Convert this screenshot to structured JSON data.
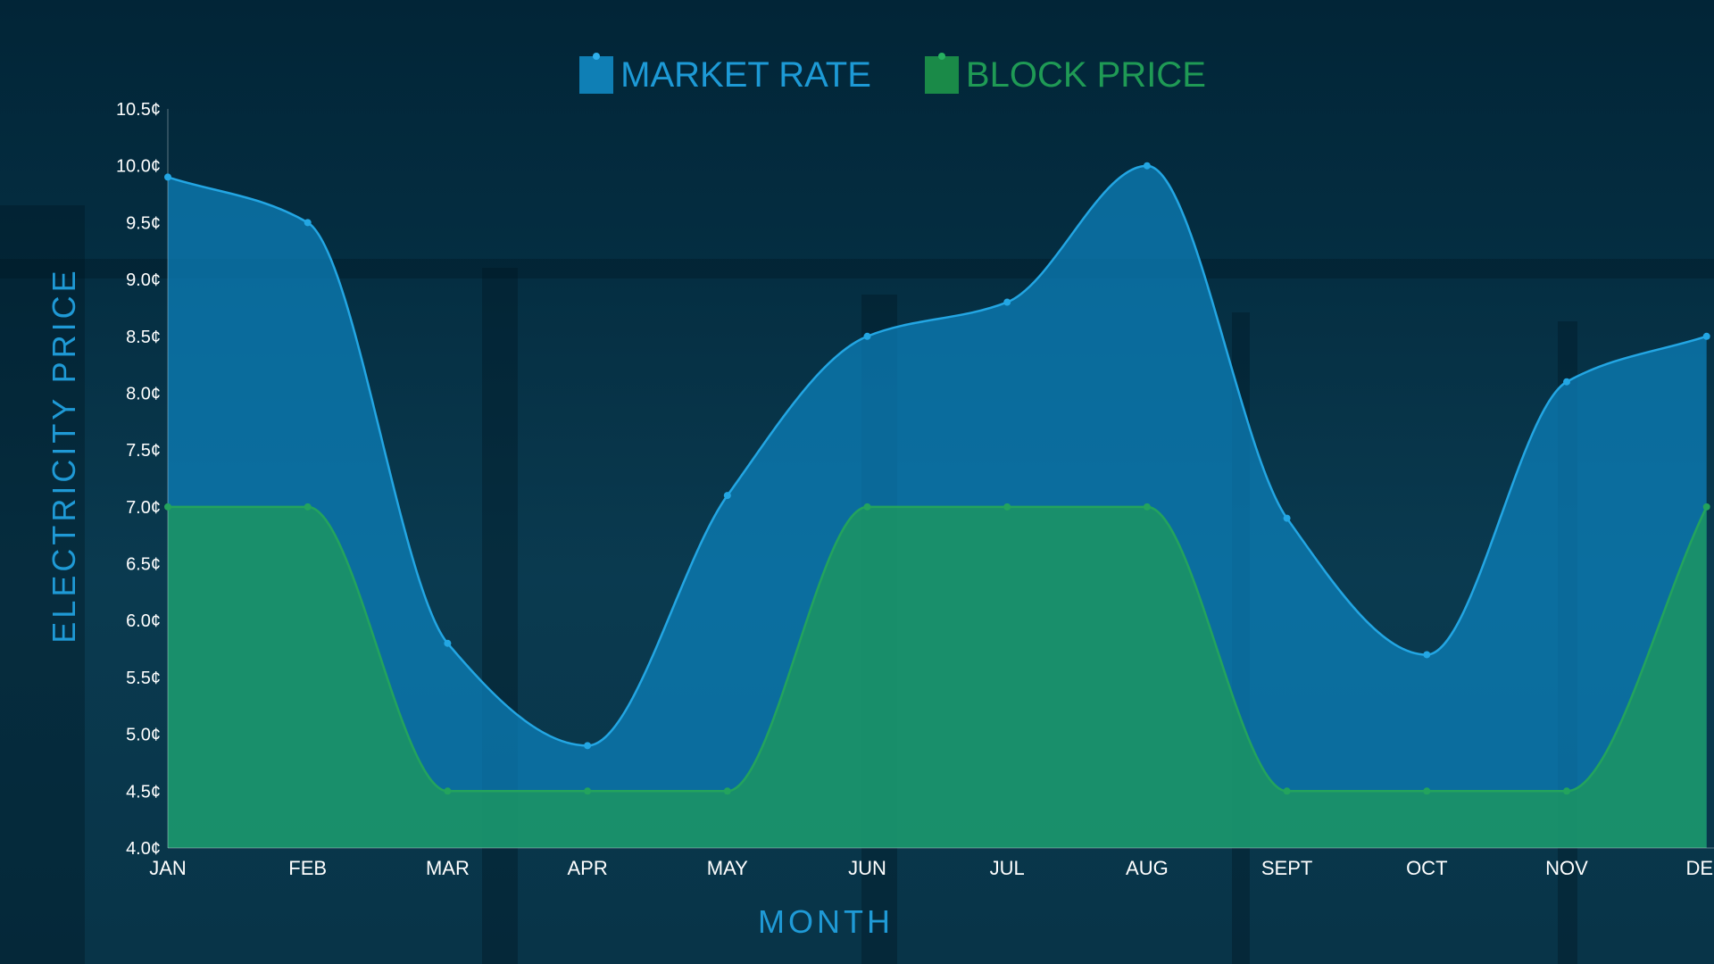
{
  "chart_data": {
    "type": "area",
    "categories": [
      "JAN",
      "FEB",
      "MAR",
      "APR",
      "MAY",
      "JUN",
      "JUL",
      "AUG",
      "SEPT",
      "OCT",
      "NOV",
      "DEC"
    ],
    "series": [
      {
        "name": "MARKET RATE",
        "color": "#1d9ad6",
        "values": [
          9.9,
          9.5,
          5.8,
          4.9,
          7.1,
          8.5,
          8.8,
          10.0,
          6.9,
          5.7,
          8.1,
          8.5
        ]
      },
      {
        "name": "BLOCK PRICE",
        "color": "#1f9a55",
        "values": [
          7.0,
          7.0,
          4.5,
          4.5,
          4.5,
          7.0,
          7.0,
          7.0,
          4.5,
          4.5,
          4.5,
          7.0
        ]
      }
    ],
    "xlabel": "MONTH",
    "ylabel": "ELECTRICITY PRICE",
    "ylim": [
      4.0,
      10.5
    ],
    "yticks": [
      "4.0¢",
      "4.5¢",
      "5.0¢",
      "5.5¢",
      "6.0¢",
      "6.5¢",
      "7.0¢",
      "7.5¢",
      "8.0¢",
      "8.5¢",
      "9.0¢",
      "9.5¢",
      "10.0¢",
      "10.5¢"
    ],
    "grid": false,
    "legend": "top-center"
  }
}
